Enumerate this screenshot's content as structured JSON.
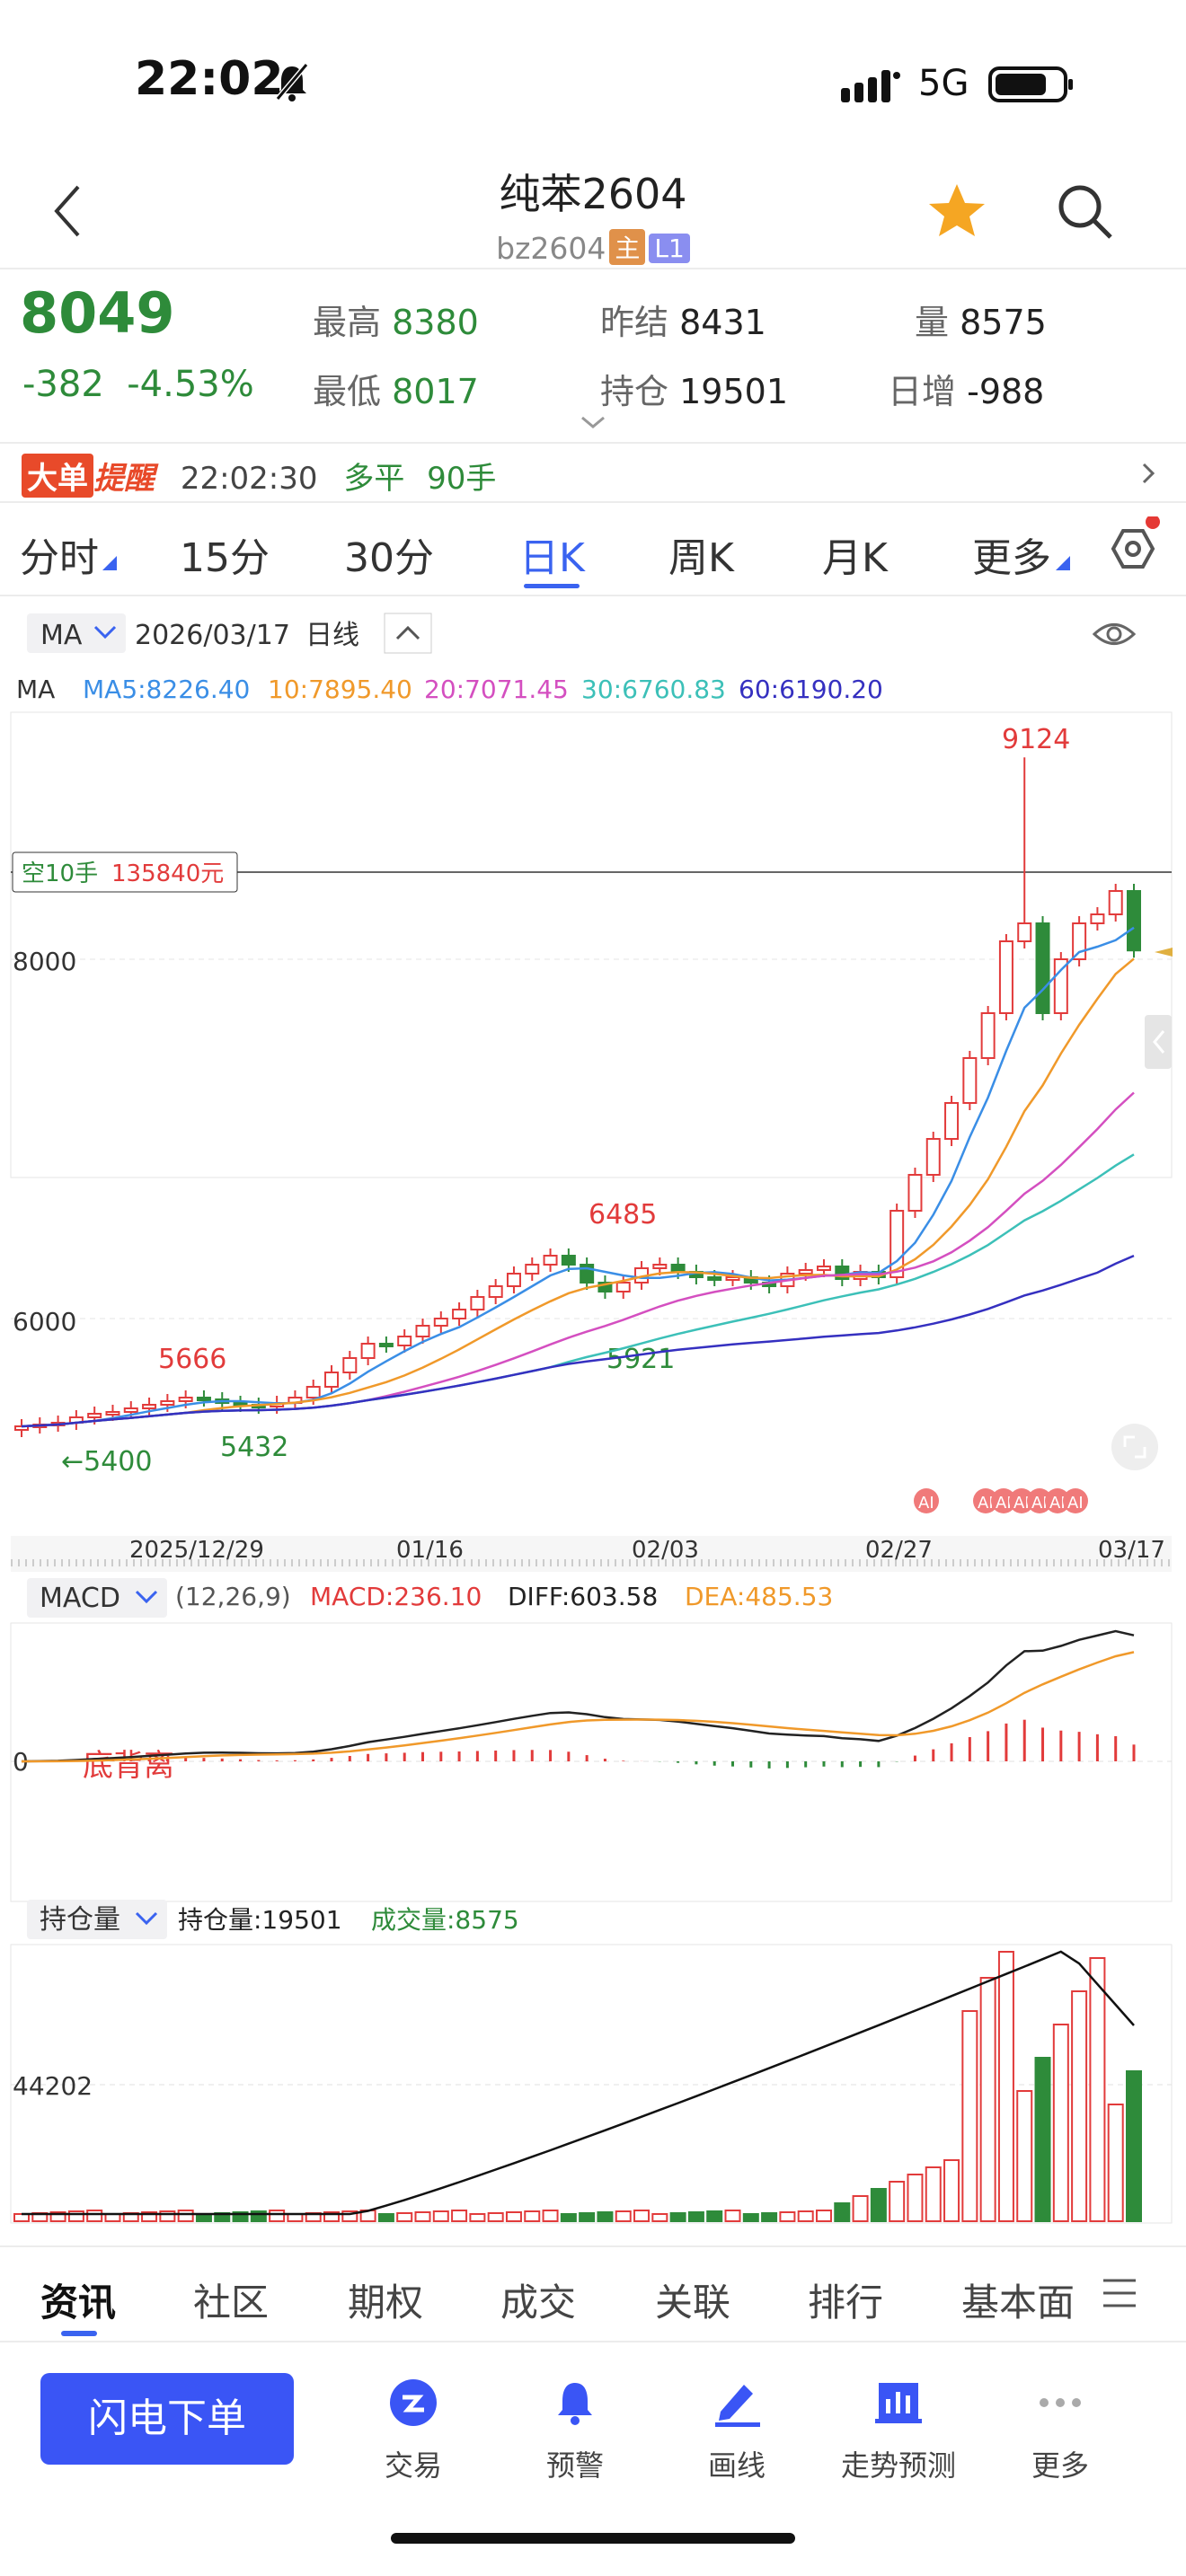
{
  "status": {
    "time": "22:02",
    "network": "5G"
  },
  "header": {
    "title": "纯苯2604",
    "code": "bz2604",
    "tag_main": "主",
    "tag_level": "L1"
  },
  "quote": {
    "price": "8049",
    "change": "-382",
    "change_pct": "-4.53%",
    "high_label": "最高",
    "high": "8380",
    "low_label": "最低",
    "low": "8017",
    "prev_settle_label": "昨结",
    "prev_settle": "8431",
    "open_int_label": "持仓",
    "open_int": "19501",
    "volume_label": "量",
    "volume": "8575",
    "daily_inc_label": "日增",
    "daily_inc": "-988"
  },
  "alert": {
    "badge": "大单",
    "title": "提醒",
    "time": "22:02:30",
    "action": "多平",
    "lots": "90手"
  },
  "tabs": [
    "分时",
    "15分",
    "30分",
    "日K",
    "周K",
    "月K",
    "更多"
  ],
  "active_tab": "日K",
  "chart_header": {
    "indicator": "MA",
    "date": "2026/03/17",
    "period": "日线"
  },
  "ma": {
    "label": "MA",
    "ma5": "MA5:8226.40",
    "ma10": "10:7895.40",
    "ma20": "20:7071.45",
    "ma30": "30:6760.83",
    "ma60": "60:6190.20"
  },
  "colors": {
    "up": "#e23b3b",
    "down": "#2e8b3a",
    "ma5": "#3a8ee6",
    "ma10": "#f0992a",
    "ma20": "#d44fc0",
    "ma30": "#3cc0b8",
    "ma60": "#3530c0",
    "accent": "#3a63f0"
  },
  "position_label": {
    "side": "空10手",
    "amount": "135840元"
  },
  "price_labels": {
    "y8000": "8000",
    "y6000": "6000",
    "max": "9124",
    "p6485": "6485",
    "p5666": "5666",
    "p5921": "5921",
    "p5432": "5432",
    "p5400": "←5400"
  },
  "x_dates": [
    "2025/12/29",
    "01/16",
    "02/03",
    "02/27",
    "03/17"
  ],
  "ai_badge": "AI",
  "macd": {
    "label": "MACD",
    "params": "(12,26,9)",
    "macd": "MACD:236.10",
    "diff": "DIFF:603.58",
    "dea": "DEA:485.53",
    "zero": "0",
    "divergence": "底背离"
  },
  "oi": {
    "label": "持仓量",
    "oi": "持仓量:19501",
    "vol": "成交量:8575",
    "level": "44202"
  },
  "bottom_tabs": [
    "资讯",
    "社区",
    "期权",
    "成交",
    "关联",
    "排行",
    "基本面"
  ],
  "toolbar": {
    "flash": "闪电下单",
    "trade": "交易",
    "alert": "预警",
    "draw": "画线",
    "predict": "走势预测",
    "more": "更多"
  },
  "chart_data": {
    "type": "candlestick",
    "period": "日线",
    "x_range": [
      "2025/12/29",
      "03/17"
    ],
    "y_ticks": [
      6000,
      8000
    ],
    "annotated": {
      "high": 9124,
      "local_high": 6485,
      "local_low": 5921,
      "early_high": 5666,
      "early_low": 5432,
      "left_low": 5400
    },
    "last": {
      "close": 8049,
      "high": 8380,
      "low": 8017,
      "prev_settle": 8431
    },
    "ma": {
      "ma5": 8226.4,
      "ma10": 7895.4,
      "ma20": 7071.45,
      "ma30": 6760.83,
      "ma60": 6190.2
    },
    "macd": {
      "macd": 236.1,
      "diff": 603.58,
      "dea": 485.53
    },
    "open_interest": 19501,
    "volume": 8575,
    "oi_level": 44202
  }
}
